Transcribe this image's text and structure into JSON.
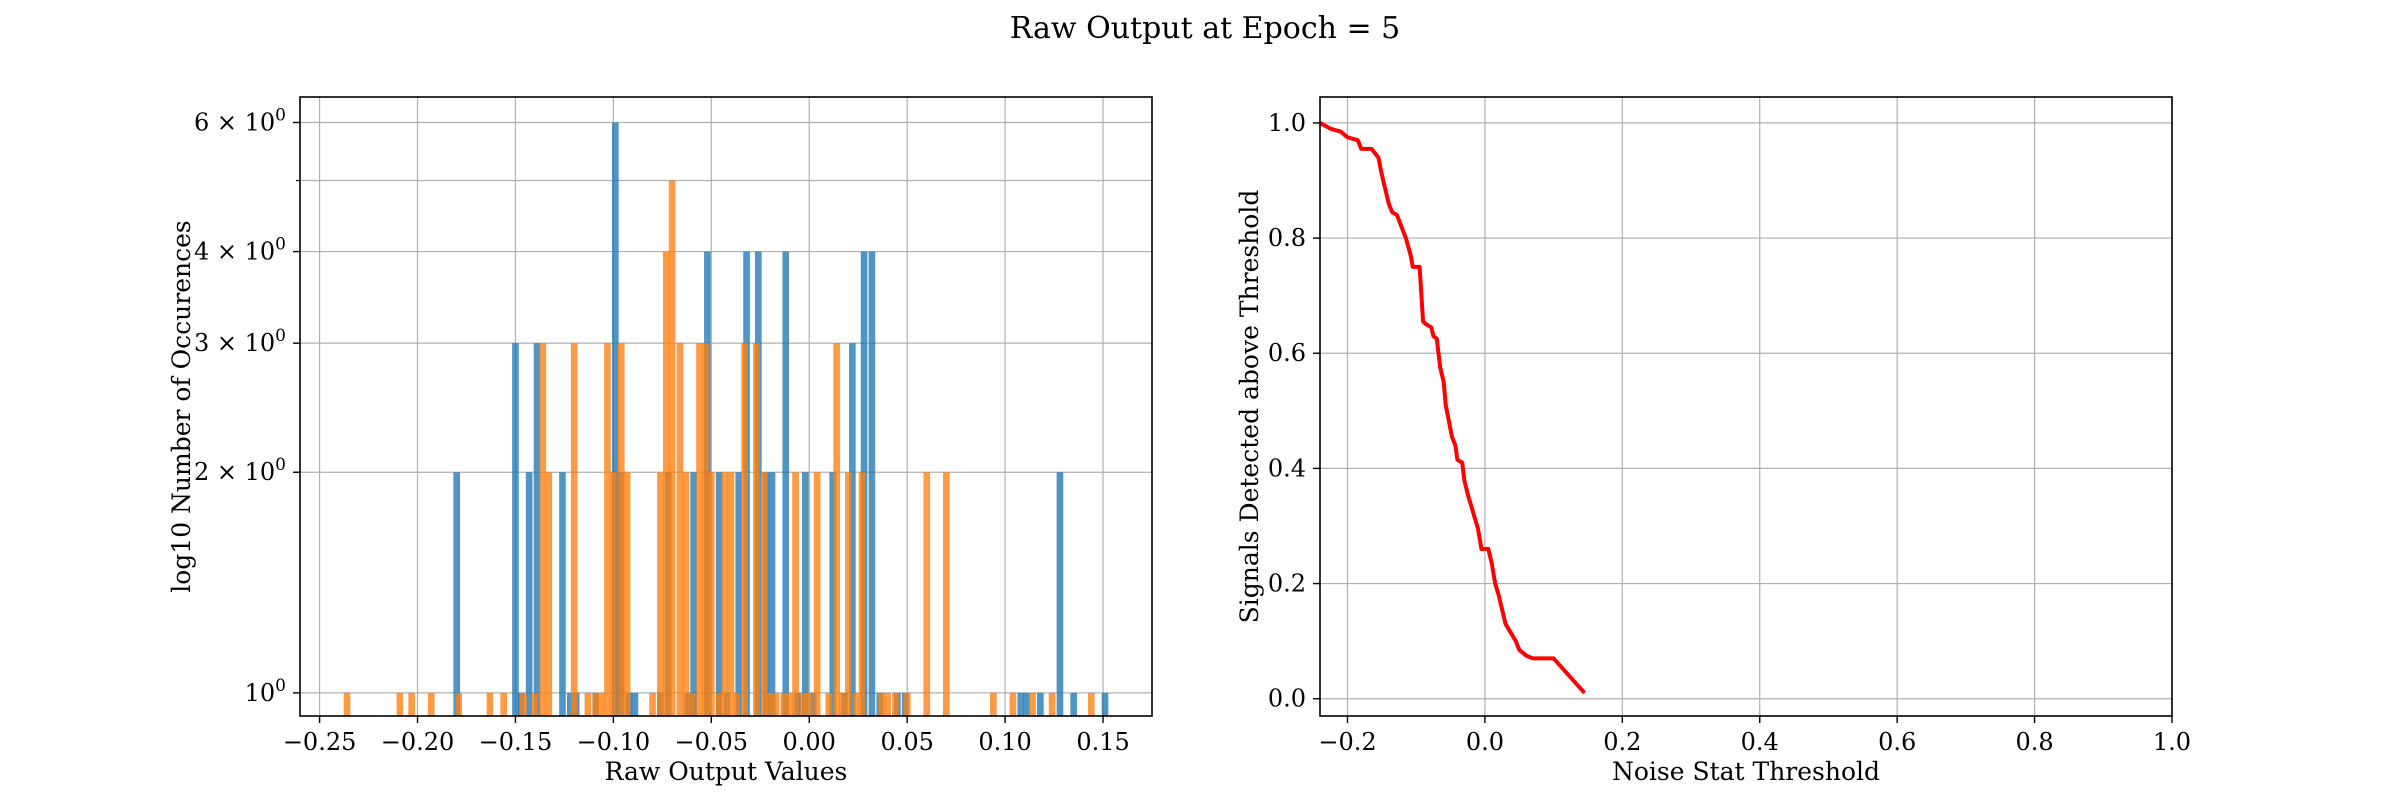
{
  "figure": {
    "suptitle": "Raw Output at Epoch = 5"
  },
  "colors": {
    "series_a": "#1f77b4",
    "series_b": "#ff7f0e",
    "curve": "#ff0000",
    "grid": "#b0b0b0",
    "frame": "#000000"
  },
  "chart_data": [
    {
      "type": "bar",
      "xlabel": "Raw Output Values",
      "ylabel": "log10 Number of Occurences",
      "xlim": [
        -0.26,
        0.175
      ],
      "ylim": [
        0.93,
        6.5
      ],
      "yscale": "log",
      "grid": true,
      "x_ticks": [
        {
          "value": -0.25,
          "label": "−0.25"
        },
        {
          "value": -0.2,
          "label": "−0.20"
        },
        {
          "value": -0.15,
          "label": "−0.15"
        },
        {
          "value": -0.1,
          "label": "−0.10"
        },
        {
          "value": -0.05,
          "label": "−0.05"
        },
        {
          "value": 0.0,
          "label": "0.00"
        },
        {
          "value": 0.05,
          "label": "0.05"
        },
        {
          "value": 0.1,
          "label": "0.10"
        },
        {
          "value": 0.15,
          "label": "0.15"
        }
      ],
      "y_ticks": [
        {
          "value": 1,
          "base": "10",
          "exp": "0"
        },
        {
          "value": 2,
          "base": "2 × 10",
          "exp": "0"
        },
        {
          "value": 3,
          "base": "3 × 10",
          "exp": "0"
        },
        {
          "value": 4,
          "base": "4 × 10",
          "exp": "0"
        },
        {
          "value": 6,
          "base": "6 × 10",
          "exp": "0"
        }
      ],
      "y_minor_ticks": [
        5
      ],
      "series": [
        {
          "color": "#1f77b4",
          "bar_width": 0.0034,
          "bins": [
            [
              -0.18,
              2
            ],
            [
              -0.15,
              3
            ],
            [
              -0.147,
              1
            ],
            [
              -0.143,
              2
            ],
            [
              -0.139,
              3
            ],
            [
              -0.126,
              2
            ],
            [
              -0.122,
              1
            ],
            [
              -0.119,
              1
            ],
            [
              -0.109,
              1
            ],
            [
              -0.099,
              6
            ],
            [
              -0.096,
              2
            ],
            [
              -0.092,
              1
            ],
            [
              -0.089,
              1
            ],
            [
              -0.076,
              1
            ],
            [
              -0.072,
              2
            ],
            [
              -0.062,
              1
            ],
            [
              -0.059,
              2
            ],
            [
              -0.052,
              4
            ],
            [
              -0.046,
              2
            ],
            [
              -0.042,
              1
            ],
            [
              -0.036,
              2
            ],
            [
              -0.032,
              4
            ],
            [
              -0.026,
              4
            ],
            [
              -0.022,
              2
            ],
            [
              -0.019,
              2
            ],
            [
              -0.012,
              4
            ],
            [
              -0.006,
              1
            ],
            [
              -0.002,
              2
            ],
            [
              0.002,
              1
            ],
            [
              0.012,
              2
            ],
            [
              0.018,
              1
            ],
            [
              0.022,
              3
            ],
            [
              0.028,
              4
            ],
            [
              0.032,
              4
            ],
            [
              0.036,
              1
            ],
            [
              0.045,
              1
            ],
            [
              0.049,
              1
            ],
            [
              0.108,
              1
            ],
            [
              0.111,
              1
            ],
            [
              0.118,
              1
            ],
            [
              0.128,
              2
            ],
            [
              0.135,
              1
            ],
            [
              0.151,
              1
            ]
          ]
        },
        {
          "color": "#ff7f0e",
          "bar_width": 0.0034,
          "bins": [
            [
              -0.236,
              1
            ],
            [
              -0.209,
              1
            ],
            [
              -0.203,
              1
            ],
            [
              -0.193,
              1
            ],
            [
              -0.179,
              1
            ],
            [
              -0.163,
              1
            ],
            [
              -0.156,
              1
            ],
            [
              -0.146,
              1
            ],
            [
              -0.14,
              1
            ],
            [
              -0.136,
              3
            ],
            [
              -0.133,
              2
            ],
            [
              -0.12,
              3
            ],
            [
              -0.113,
              1
            ],
            [
              -0.109,
              1
            ],
            [
              -0.106,
              1
            ],
            [
              -0.103,
              3
            ],
            [
              -0.1,
              2
            ],
            [
              -0.096,
              3
            ],
            [
              -0.093,
              2
            ],
            [
              -0.08,
              1
            ],
            [
              -0.076,
              2
            ],
            [
              -0.073,
              4
            ],
            [
              -0.07,
              5
            ],
            [
              -0.066,
              3
            ],
            [
              -0.063,
              2
            ],
            [
              -0.06,
              1
            ],
            [
              -0.056,
              3
            ],
            [
              -0.053,
              3
            ],
            [
              -0.05,
              2
            ],
            [
              -0.046,
              1
            ],
            [
              -0.043,
              2
            ],
            [
              -0.04,
              2
            ],
            [
              -0.037,
              1
            ],
            [
              -0.033,
              3
            ],
            [
              -0.027,
              3
            ],
            [
              -0.023,
              2
            ],
            [
              -0.02,
              1
            ],
            [
              -0.017,
              1
            ],
            [
              -0.013,
              1
            ],
            [
              -0.01,
              1
            ],
            [
              -0.007,
              2
            ],
            [
              -0.003,
              1
            ],
            [
              0.0,
              1
            ],
            [
              0.004,
              2
            ],
            [
              0.01,
              1
            ],
            [
              0.014,
              3
            ],
            [
              0.017,
              1
            ],
            [
              0.02,
              2
            ],
            [
              0.024,
              1
            ],
            [
              0.027,
              2
            ],
            [
              0.037,
              1
            ],
            [
              0.04,
              1
            ],
            [
              0.044,
              1
            ],
            [
              0.05,
              1
            ],
            [
              0.06,
              2
            ],
            [
              0.07,
              2
            ],
            [
              0.094,
              1
            ],
            [
              0.104,
              1
            ],
            [
              0.114,
              1
            ],
            [
              0.124,
              1
            ],
            [
              0.144,
              1
            ]
          ]
        }
      ]
    },
    {
      "type": "line",
      "xlabel": "Noise Stat Threshold",
      "ylabel": "Signals Detected above Threshold",
      "xlim": [
        -0.24,
        1.0
      ],
      "ylim": [
        -0.03,
        1.045
      ],
      "grid": true,
      "x_ticks": [
        {
          "value": -0.2,
          "label": "−0.2"
        },
        {
          "value": 0.0,
          "label": "0.0"
        },
        {
          "value": 0.2,
          "label": "0.2"
        },
        {
          "value": 0.4,
          "label": "0.4"
        },
        {
          "value": 0.6,
          "label": "0.6"
        },
        {
          "value": 0.8,
          "label": "0.8"
        },
        {
          "value": 1.0,
          "label": "1.0"
        }
      ],
      "y_ticks": [
        {
          "value": 0.0,
          "label": "0.0"
        },
        {
          "value": 0.2,
          "label": "0.2"
        },
        {
          "value": 0.4,
          "label": "0.4"
        },
        {
          "value": 0.6,
          "label": "0.6"
        },
        {
          "value": 0.8,
          "label": "0.8"
        },
        {
          "value": 1.0,
          "label": "1.0"
        }
      ],
      "series": [
        {
          "color": "#ff0000",
          "points": [
            [
              -0.24,
              1.0
            ],
            [
              -0.225,
              0.99
            ],
            [
              -0.21,
              0.985
            ],
            [
              -0.2,
              0.975
            ],
            [
              -0.185,
              0.97
            ],
            [
              -0.18,
              0.955
            ],
            [
              -0.165,
              0.955
            ],
            [
              -0.155,
              0.94
            ],
            [
              -0.15,
              0.91
            ],
            [
              -0.14,
              0.86
            ],
            [
              -0.135,
              0.845
            ],
            [
              -0.128,
              0.84
            ],
            [
              -0.115,
              0.8
            ],
            [
              -0.108,
              0.77
            ],
            [
              -0.105,
              0.75
            ],
            [
              -0.095,
              0.75
            ],
            [
              -0.09,
              0.655
            ],
            [
              -0.085,
              0.65
            ],
            [
              -0.078,
              0.645
            ],
            [
              -0.075,
              0.63
            ],
            [
              -0.07,
              0.625
            ],
            [
              -0.065,
              0.575
            ],
            [
              -0.06,
              0.55
            ],
            [
              -0.057,
              0.51
            ],
            [
              -0.052,
              0.48
            ],
            [
              -0.048,
              0.455
            ],
            [
              -0.043,
              0.44
            ],
            [
              -0.04,
              0.415
            ],
            [
              -0.033,
              0.41
            ],
            [
              -0.03,
              0.38
            ],
            [
              -0.025,
              0.355
            ],
            [
              -0.02,
              0.335
            ],
            [
              -0.015,
              0.315
            ],
            [
              -0.01,
              0.295
            ],
            [
              -0.005,
              0.26
            ],
            [
              0.005,
              0.26
            ],
            [
              0.01,
              0.235
            ],
            [
              0.015,
              0.2
            ],
            [
              0.02,
              0.18
            ],
            [
              0.025,
              0.155
            ],
            [
              0.03,
              0.13
            ],
            [
              0.04,
              0.11
            ],
            [
              0.045,
              0.1
            ],
            [
              0.05,
              0.085
            ],
            [
              0.06,
              0.075
            ],
            [
              0.07,
              0.07
            ],
            [
              0.08,
              0.07
            ],
            [
              0.09,
              0.07
            ],
            [
              0.1,
              0.07
            ],
            [
              0.145,
              0.01
            ]
          ]
        }
      ]
    }
  ]
}
